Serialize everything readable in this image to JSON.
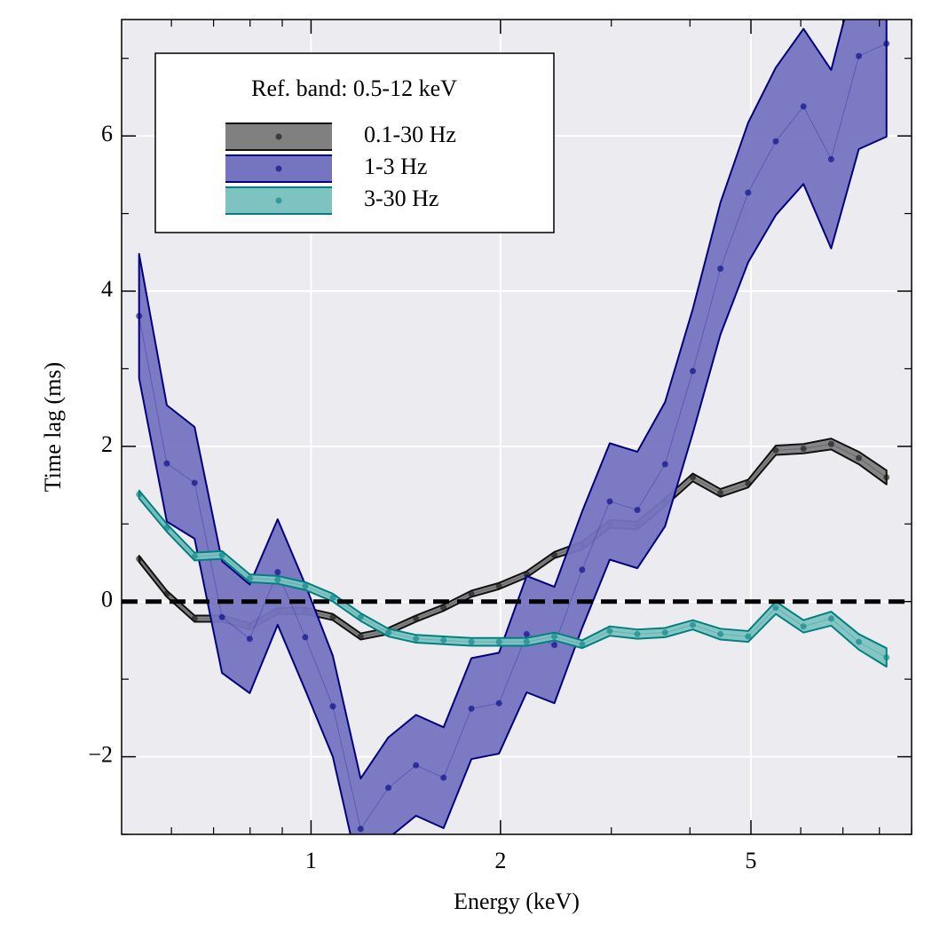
{
  "chart_data": {
    "type": "line",
    "xlabel": "Energy (keV)",
    "ylabel": "Time lag (ms)",
    "legend_title": "Ref. band: 0.5-12 keV",
    "legend": "upper left",
    "xscale": "log",
    "xlim": [
      0.5,
      9
    ],
    "ylim": [
      -3,
      7.5
    ],
    "xticks": [
      1,
      2,
      5
    ],
    "xminorticks": [
      0.6,
      0.7,
      0.8,
      0.9,
      3,
      4,
      6,
      7,
      8,
      9
    ],
    "yticks": [
      -2,
      0,
      2,
      4,
      6
    ],
    "yminorticks": [
      -3,
      -1,
      1,
      3,
      5,
      7
    ],
    "grid": true,
    "reference_line": 0,
    "x": [
      0.533,
      0.59,
      0.653,
      0.722,
      0.799,
      0.885,
      0.979,
      1.083,
      1.199,
      1.327,
      1.468,
      1.624,
      1.798,
      1.989,
      2.201,
      2.436,
      2.696,
      2.983,
      3.3,
      3.652,
      4.042,
      4.472,
      4.949,
      5.476,
      6.06,
      6.706,
      7.42,
      8.211
    ],
    "series": [
      {
        "name": "0.1-30 Hz",
        "color": "#808080",
        "edge_color": "#111111",
        "values": [
          0.55,
          0.1,
          -0.22,
          -0.22,
          -0.32,
          -0.12,
          -0.12,
          -0.2,
          -0.45,
          -0.38,
          -0.22,
          -0.08,
          0.1,
          0.2,
          0.35,
          0.6,
          0.72,
          1.0,
          0.98,
          1.28,
          1.6,
          1.4,
          1.52,
          1.95,
          1.97,
          2.03,
          1.85,
          1.6
        ],
        "errors": [
          0.04,
          0.04,
          0.04,
          0.04,
          0.04,
          0.04,
          0.04,
          0.04,
          0.04,
          0.04,
          0.04,
          0.04,
          0.04,
          0.04,
          0.04,
          0.04,
          0.05,
          0.05,
          0.05,
          0.05,
          0.05,
          0.05,
          0.05,
          0.06,
          0.06,
          0.07,
          0.08,
          0.09
        ]
      },
      {
        "name": "1-3 Hz",
        "color": "#7574c0",
        "edge_color": "#000080",
        "values": [
          3.68,
          1.78,
          1.53,
          -0.2,
          -0.48,
          0.38,
          -0.46,
          -1.35,
          -2.93,
          -2.4,
          -2.11,
          -2.27,
          -1.38,
          -1.31,
          -0.42,
          -0.56,
          0.41,
          1.29,
          1.18,
          1.77,
          2.97,
          4.29,
          5.27,
          5.93,
          6.38,
          5.7,
          7.03,
          7.19
        ],
        "errors": [
          0.8,
          0.75,
          0.72,
          0.72,
          0.7,
          0.68,
          0.68,
          0.65,
          0.65,
          0.65,
          0.65,
          0.65,
          0.65,
          0.65,
          0.75,
          0.75,
          0.75,
          0.75,
          0.75,
          0.8,
          0.8,
          0.85,
          0.9,
          0.95,
          1.0,
          1.15,
          1.2,
          1.2
        ]
      },
      {
        "name": "3-30 Hz",
        "color": "#7fc3c1",
        "edge_color": "#008080",
        "values": [
          1.38,
          0.95,
          0.58,
          0.6,
          0.3,
          0.28,
          0.2,
          0.05,
          -0.2,
          -0.4,
          -0.48,
          -0.5,
          -0.52,
          -0.52,
          -0.52,
          -0.45,
          -0.55,
          -0.38,
          -0.42,
          -0.4,
          -0.3,
          -0.42,
          -0.45,
          -0.08,
          -0.32,
          -0.22,
          -0.52,
          -0.72
        ],
        "errors": [
          0.05,
          0.05,
          0.05,
          0.05,
          0.05,
          0.05,
          0.05,
          0.05,
          0.05,
          0.05,
          0.05,
          0.05,
          0.05,
          0.05,
          0.05,
          0.05,
          0.05,
          0.06,
          0.06,
          0.06,
          0.06,
          0.07,
          0.07,
          0.08,
          0.08,
          0.09,
          0.1,
          0.12
        ]
      }
    ]
  }
}
